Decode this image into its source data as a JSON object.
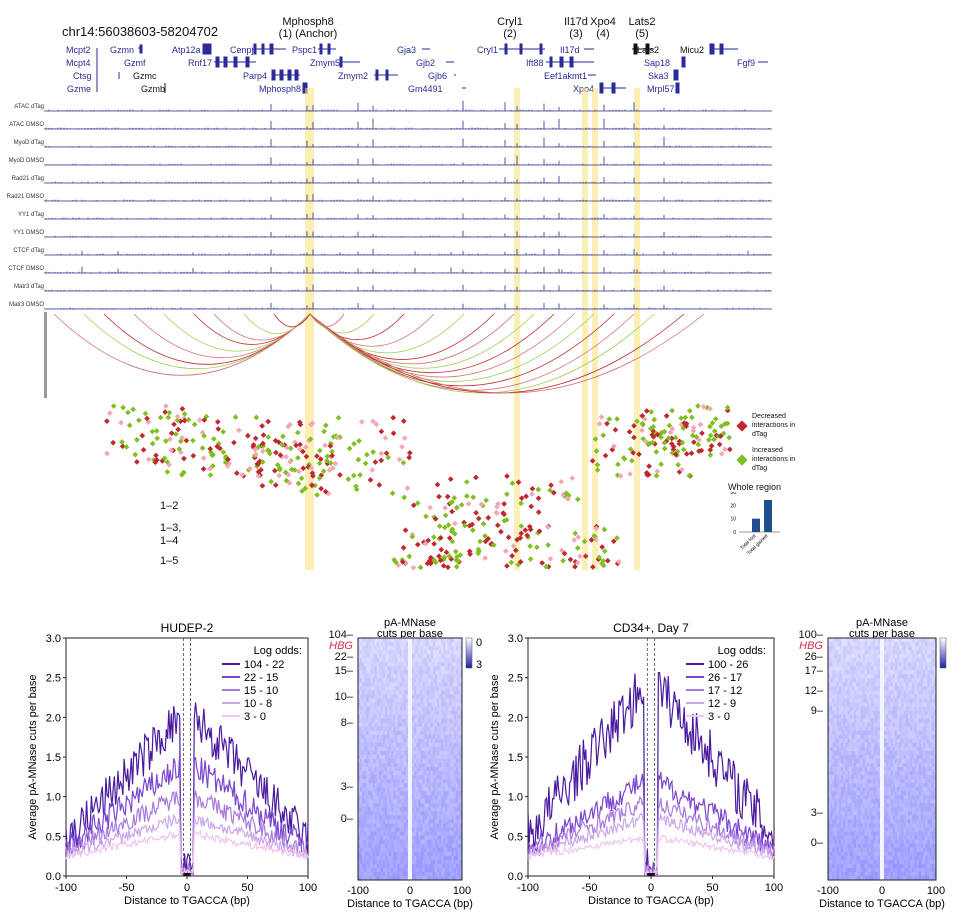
{
  "top": {
    "coords": "chr14:56038603-58204702",
    "anchors": [
      {
        "name": "Mphosph8",
        "sub": "(1) (Anchor)"
      },
      {
        "name": "Cryl1",
        "sub": "(2)"
      },
      {
        "name": "Il17d",
        "sub": "(3)"
      },
      {
        "name": "Xpo4",
        "sub": "(4)"
      },
      {
        "name": "Lats2",
        "sub": "(5)"
      }
    ],
    "genes": [
      "Mcpt2",
      "Gzmn",
      "Atp12a",
      "Cenpj",
      "Pspc1",
      "Gja3",
      "Cryl1",
      "Il17d",
      "Lats2",
      "Micu2",
      "Mcpt4",
      "Gzmf",
      "Rnf17",
      "Zmym5",
      "Gjb2",
      "Ift88",
      "Sap18",
      "Fgf9",
      "Ctsg",
      "Gzmc",
      "Parp4",
      "Zmym2",
      "Gjb6",
      "Eef1akmt1",
      "Ska3",
      "Gzme",
      "Gzmb",
      "Mphosph8",
      "Gm4491",
      "Xpo4",
      "Mrpl57"
    ],
    "tracks": [
      "ATAC dTag",
      "ATAC DMSO",
      "MyoD dTag",
      "MyoD DMSO",
      "Rad21 dTag",
      "Rad21 DMSO",
      "YY1 dTag",
      "YY1 DMSO",
      "CTCF dTag",
      "CTCF DMSO",
      "Matr3 dTag",
      "Matr3 DMSO"
    ],
    "legend": {
      "decreased": "Decreased interactions in dTag",
      "increased": "Increased interactions in dTag"
    },
    "pair_labels": [
      "1–2",
      "1–3,",
      "1–4",
      "1–5"
    ],
    "whole_region": {
      "title": "Whole region",
      "yticks": [
        "30",
        "20",
        "10",
        "0"
      ],
      "bars": [
        {
          "label": "Total lost",
          "value": 10
        },
        {
          "label": "Total gained",
          "value": 24
        }
      ]
    }
  },
  "bottom": {
    "left": {
      "title": "HUDEP-2",
      "ylabel": "Average pA-MNase cuts per base",
      "xlabel": "Distance to TGACCA (bp)",
      "legend_title": "Log odds:",
      "legend": [
        "104 - 22",
        "22 - 15",
        "15 - 10",
        "10 - 8",
        "3 - 0"
      ],
      "heat_title": [
        "pA-MNase",
        "cuts per base"
      ],
      "heat_labels": [
        "104",
        "HBG",
        "22",
        "15",
        "10",
        "8",
        "3",
        "0"
      ],
      "scale": [
        "0",
        "3"
      ]
    },
    "right": {
      "title": "CD34+, Day 7",
      "ylabel": "Average pA-MNase cuts per base",
      "xlabel": "Distance to TGACCA (bp)",
      "legend_title": "Log odds:",
      "legend": [
        "100 - 26",
        "26 - 17",
        "17 - 12",
        "12 - 9",
        "3 - 0"
      ],
      "heat_title": [
        "pA-MNase",
        "cuts per base"
      ],
      "heat_labels": [
        "100",
        "HBG",
        "26",
        "17",
        "12",
        "9",
        "3",
        "0"
      ],
      "scale": [
        "0",
        "3"
      ]
    },
    "x_ticks": [
      "-100",
      "-50",
      "0",
      "50",
      "100"
    ],
    "y_ticks": [
      "3.0",
      "2.5",
      "2.0",
      "1.5",
      "1.0",
      "0.5",
      "0.0"
    ],
    "heat_x_ticks": [
      "-100",
      "0",
      "100"
    ]
  },
  "colors": {
    "s1": "#4a1a9e",
    "s2": "#7a45cf",
    "s3": "#a87ae0",
    "s4": "#cda6ea",
    "s5": "#f0c6ec",
    "red": "#c0282d",
    "green": "#7fbf1f",
    "yellow": "#f7e27a",
    "track": "#2b2b8e"
  }
}
